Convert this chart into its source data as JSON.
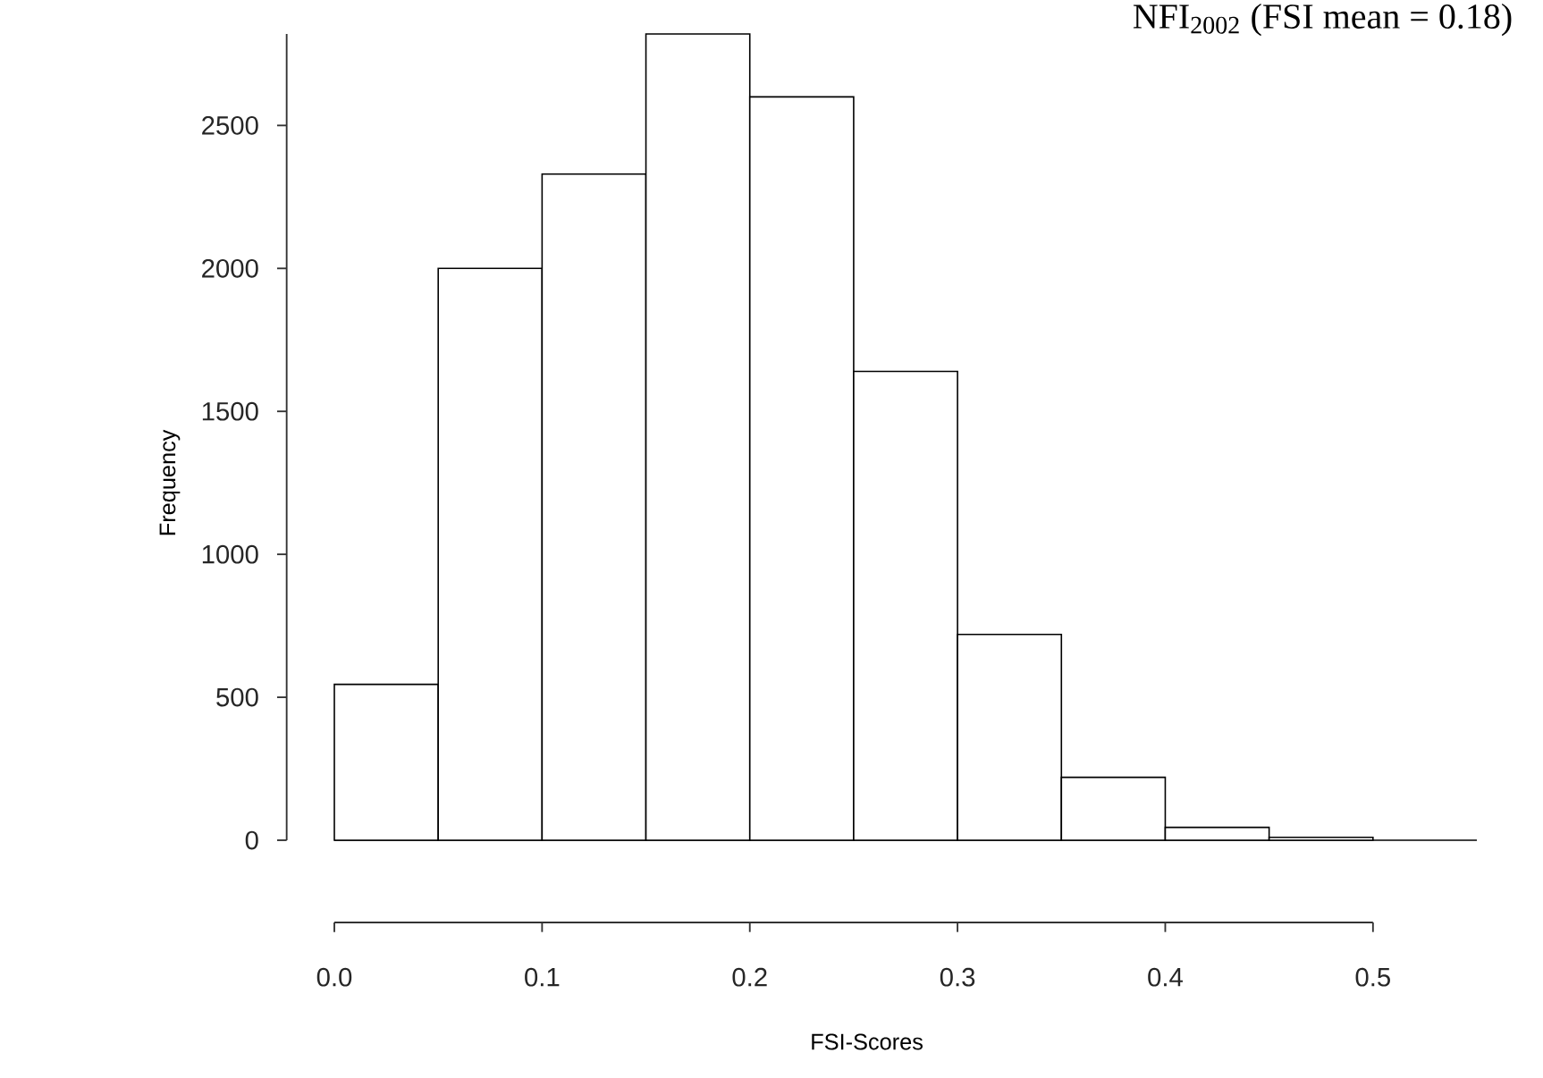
{
  "chart_data": {
    "type": "histogram",
    "title": "NFI$_{2002}$ (FSI mean = 0.18)",
    "xlabel": "FSI-Scores",
    "ylabel": "Frequency",
    "bins": [
      0,
      0.05,
      0.1,
      0.15,
      0.2,
      0.25,
      0.3,
      0.35,
      0.4,
      0.45,
      0.5
    ],
    "values": [
      545,
      2000,
      2330,
      2820,
      2600,
      1640,
      720,
      220,
      45,
      10
    ],
    "color": "#ffffff",
    "xlim": [
      0,
      0.55
    ],
    "ylim": [
      0,
      2820
    ],
    "xticks": [
      {
        "value": 0,
        "label": "0.0"
      },
      0.1,
      0.2,
      0.3,
      0.4,
      0.5
    ],
    "yticks": [
      0,
      500,
      1000,
      1500,
      2000,
      2500
    ]
  }
}
